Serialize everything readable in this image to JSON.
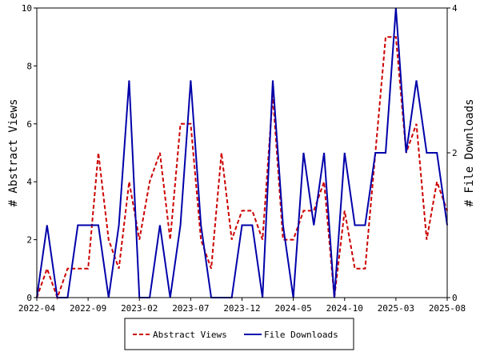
{
  "chart_data": {
    "type": "line",
    "x_tick_labels": [
      "2022-04",
      "2022-09",
      "2023-02",
      "2023-07",
      "2023-12",
      "2024-05",
      "2024-10",
      "2025-03",
      "2025-08"
    ],
    "ylabel_left": "# Abstract Views",
    "ylabel_right": "# File Downloads",
    "ylim_left": [
      0,
      10
    ],
    "ylim_right": [
      0,
      4
    ],
    "yticks_left": [
      "0",
      "2",
      "4",
      "6",
      "8",
      "10"
    ],
    "yticks_right": [
      "0",
      "2",
      "4"
    ],
    "grid": false,
    "legend_position": "bottom-center",
    "series": [
      {
        "name": "Abstract Views",
        "axis": "left",
        "color": "#cc0000",
        "style": "dashed",
        "values": [
          0,
          1,
          0,
          1,
          1,
          1,
          5,
          2,
          1,
          4,
          2,
          4,
          5,
          2,
          6,
          6,
          2,
          1,
          5,
          2,
          3,
          3,
          2,
          7,
          2,
          2,
          3,
          3,
          4,
          0,
          3,
          1,
          1,
          5,
          9,
          9,
          5,
          6,
          2,
          4,
          3
        ]
      },
      {
        "name": "File Downloads",
        "axis": "right",
        "color": "#0000aa",
        "style": "solid",
        "values": [
          0,
          1,
          0,
          0,
          1,
          1,
          1,
          0,
          1,
          3,
          0,
          0,
          1,
          0,
          1,
          3,
          1,
          0,
          0,
          0,
          1,
          1,
          0,
          3,
          1,
          0,
          2,
          1,
          2,
          0,
          2,
          1,
          1,
          2,
          2,
          4,
          2,
          3,
          2,
          2,
          1
        ]
      }
    ]
  }
}
